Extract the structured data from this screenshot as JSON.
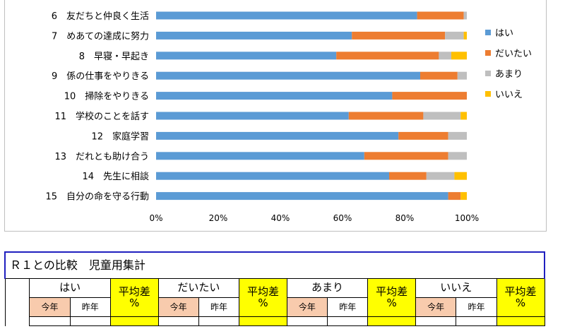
{
  "chart_data": {
    "type": "bar",
    "orientation": "horizontal",
    "stacked": true,
    "percent": true,
    "categories": [
      "6　友だちと仲良く生活",
      "7　めあての達成に努力",
      "8　早寝・早起き",
      "9　係の仕事をやりきる",
      "10　掃除をやりきる",
      "11　学校のことを話す",
      "12　家庭学習",
      "13　だれとも助け合う",
      "14　先生に相談",
      "15　自分の命を守る行動"
    ],
    "series": [
      {
        "name": "はい",
        "color": "#5b9bd5",
        "values": [
          84,
          63,
          58,
          85,
          76,
          62,
          78,
          67,
          75,
          94
        ]
      },
      {
        "name": "だいたい",
        "color": "#ed7d31",
        "values": [
          15,
          30,
          33,
          12,
          24,
          24,
          16,
          27,
          12,
          4
        ]
      },
      {
        "name": "あまり",
        "color": "#bfbfbf",
        "values": [
          1,
          6,
          4,
          3,
          0,
          12,
          6,
          6,
          9,
          0
        ]
      },
      {
        "name": "いいえ",
        "color": "#ffc000",
        "values": [
          0,
          1,
          5,
          0,
          0,
          2,
          0,
          0,
          4,
          2
        ]
      }
    ],
    "xlim": [
      0,
      100
    ],
    "xticks": [
      "0%",
      "20%",
      "40%",
      "60%",
      "80%",
      "100%"
    ],
    "legend": "right"
  },
  "table": {
    "title": "Ｒ１との比較　児童用集計",
    "headers": [
      "はい",
      "だいたい",
      "あまり",
      "いいえ"
    ],
    "diff_label_line1": "平均差",
    "diff_label_line2": "%",
    "this_year": "今年",
    "last_year": "昨年"
  }
}
